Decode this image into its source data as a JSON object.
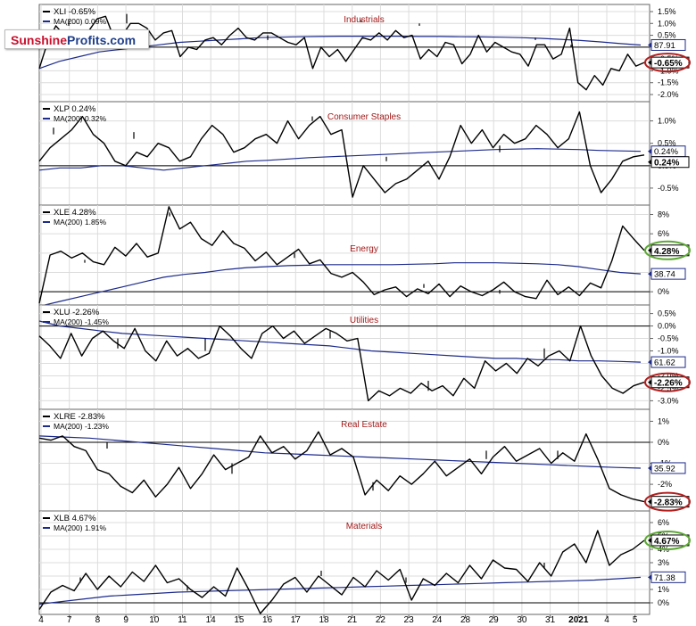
{
  "logo": {
    "part1": "Sunshine",
    "part2": "Profits",
    "part3": ".com"
  },
  "chart_data": {
    "type": "line",
    "x_labels": [
      "4",
      "7",
      "8",
      "9",
      "10",
      "11",
      "14",
      "15",
      "16",
      "17",
      "18",
      "21",
      "22",
      "23",
      "24",
      "28",
      "29",
      "30",
      "31",
      "2021",
      "4",
      "5"
    ],
    "colors": {
      "price": "#000000",
      "ma": "#1c2a8a",
      "grid": "#dcdcdc",
      "sector_title": "#a31919",
      "ellipse_red": "#b21e1e",
      "ellipse_green": "#5aa832"
    },
    "panels": [
      {
        "legend": "XLI -0.65%",
        "ma_legend": "MA(200) 0.09%",
        "sector": "Industrials",
        "yticks": [
          "1.5%",
          "1.0%",
          "0.5%",
          "0.0%",
          "-0.5%",
          "-1.0%",
          "-1.5%",
          "-2.0%"
        ],
        "ylim": [
          -2.15,
          1.65
        ],
        "ma_value": "87.91",
        "current_value": "-0.65%",
        "current": -0.65,
        "ellipse": "red",
        "price": [
          -0.9,
          0.2,
          0.9,
          0.5,
          0.6,
          0.0,
          0.7,
          1.2,
          1.3,
          0.4,
          0.5,
          1.0,
          1.0,
          0.8,
          0.3,
          0.6,
          0.7,
          -0.4,
          0.0,
          -0.1,
          0.3,
          0.4,
          0.1,
          0.5,
          0.8,
          0.4,
          0.3,
          0.6,
          0.6,
          0.4,
          0.2,
          0.1,
          0.4,
          -0.9,
          0.0,
          -0.4,
          -0.1,
          -0.6,
          -0.1,
          0.4,
          0.3,
          0.6,
          0.3,
          0.7,
          0.4,
          0.5,
          -0.5,
          -0.1,
          -0.4,
          0.2,
          0.1,
          -0.7,
          -0.3,
          0.5,
          -0.2,
          0.2,
          0.0,
          -0.2,
          -0.3,
          -0.8,
          0.1,
          0.1,
          -0.5,
          -0.3,
          0.8,
          -1.5,
          -1.8,
          -1.2,
          -1.6,
          -0.9,
          -1.0,
          -0.3,
          -0.8,
          -0.65
        ],
        "ma": [
          -0.9,
          -0.6,
          -0.4,
          -0.2,
          -0.1,
          0.0,
          0.1,
          0.2,
          0.25,
          0.3,
          0.35,
          0.4,
          0.42,
          0.44,
          0.45,
          0.46,
          0.46,
          0.46,
          0.46,
          0.45,
          0.45,
          0.44,
          0.43,
          0.42,
          0.4,
          0.37,
          0.33,
          0.28,
          0.22,
          0.15,
          0.09
        ]
      },
      {
        "legend": "XLP 0.24%",
        "ma_legend": "MA(200) 0.32%",
        "sector": "Consumer Staples",
        "yticks": [
          "1.0%",
          "0.5%",
          "0.0%",
          "-0.5%"
        ],
        "ylim": [
          -0.8,
          1.35
        ],
        "ma_value": "0.24%",
        "current_value": "0.24%",
        "current": 0.24,
        "ellipse": "none",
        "price": [
          0.1,
          0.4,
          0.6,
          0.8,
          1.1,
          0.7,
          0.5,
          0.1,
          0.0,
          0.3,
          0.2,
          0.5,
          0.4,
          0.1,
          0.2,
          0.6,
          0.9,
          0.7,
          0.3,
          0.4,
          0.6,
          0.7,
          0.5,
          1.0,
          0.6,
          0.9,
          1.1,
          0.7,
          0.8,
          -0.7,
          0.0,
          -0.3,
          -0.6,
          -0.4,
          -0.3,
          -0.1,
          0.1,
          -0.3,
          0.2,
          0.9,
          0.5,
          0.8,
          0.4,
          0.7,
          0.5,
          0.6,
          0.9,
          0.7,
          0.4,
          0.6,
          1.2,
          0.0,
          -0.6,
          -0.3,
          0.1,
          0.2,
          0.24
        ],
        "ma": [
          -0.1,
          -0.05,
          -0.05,
          0.0,
          0.0,
          -0.05,
          -0.1,
          -0.05,
          0.0,
          0.05,
          0.1,
          0.12,
          0.15,
          0.18,
          0.2,
          0.22,
          0.24,
          0.26,
          0.28,
          0.3,
          0.32,
          0.34,
          0.36,
          0.37,
          0.38,
          0.37,
          0.36,
          0.34,
          0.33,
          0.32
        ]
      },
      {
        "legend": "XLE 4.28%",
        "ma_legend": "MA(200) 1.85%",
        "sector": "Energy",
        "yticks": [
          "8%",
          "6%",
          "4%",
          "2%",
          "0%"
        ],
        "ylim": [
          -1.0,
          8.6
        ],
        "ma_value": "38.74",
        "current_value": "4.28%",
        "current": 4.28,
        "ellipse": "green",
        "price": [
          -1.2,
          3.8,
          4.2,
          3.5,
          4.0,
          3.1,
          2.8,
          4.6,
          3.7,
          5.0,
          3.6,
          4.0,
          8.8,
          6.5,
          7.2,
          5.5,
          4.8,
          6.3,
          5.0,
          4.5,
          3.2,
          4.1,
          2.8,
          3.6,
          4.4,
          2.9,
          3.3,
          1.9,
          1.5,
          2.0,
          1.0,
          -0.3,
          0.2,
          0.5,
          -0.5,
          0.3,
          -0.2,
          0.8,
          -0.5,
          0.6,
          0.0,
          -0.4,
          0.2,
          1.0,
          0.0,
          -0.5,
          -0.7,
          1.2,
          -0.3,
          0.5,
          -0.4,
          0.9,
          0.4,
          3.2,
          6.8,
          5.5,
          4.28
        ],
        "ma": [
          -1.5,
          -1.0,
          -0.5,
          0.0,
          0.5,
          1.0,
          1.5,
          1.8,
          2.0,
          2.3,
          2.5,
          2.6,
          2.7,
          2.75,
          2.8,
          2.8,
          2.8,
          2.8,
          2.85,
          2.9,
          3.0,
          3.0,
          3.0,
          2.95,
          2.9,
          2.8,
          2.6,
          2.3,
          2.0,
          1.85
        ]
      },
      {
        "legend": "XLU -2.26%",
        "ma_legend": "MA(200) -1.45%",
        "sector": "Utilities",
        "yticks": [
          "0.5%",
          "0.0%",
          "-0.5%",
          "-1.0%",
          "-1.5%",
          "-2.0%",
          "-2.5%",
          "-3.0%"
        ],
        "ylim": [
          -3.2,
          0.7
        ],
        "ma_value": "61.62",
        "current_value": "-2.26%",
        "current": -2.26,
        "ellipse": "red",
        "price": [
          -0.4,
          -0.8,
          -1.3,
          -0.3,
          -1.2,
          -0.5,
          -0.2,
          -0.6,
          -0.9,
          -0.1,
          -1.0,
          -1.4,
          -0.6,
          -1.2,
          -0.9,
          -1.3,
          -1.1,
          0.0,
          -0.4,
          -0.9,
          -1.3,
          -0.3,
          0.0,
          -0.5,
          -0.2,
          -0.7,
          -0.4,
          -0.1,
          -0.3,
          -0.6,
          -0.5,
          -3.0,
          -2.6,
          -2.8,
          -2.5,
          -2.7,
          -2.3,
          -2.6,
          -2.4,
          -2.8,
          -2.1,
          -2.5,
          -1.4,
          -1.8,
          -1.5,
          -1.9,
          -1.3,
          -1.6,
          -1.2,
          -1.0,
          -1.4,
          0.0,
          -1.2,
          -2.0,
          -2.5,
          -2.7,
          -2.4,
          -2.26
        ],
        "ma": [
          0.2,
          0.0,
          -0.1,
          -0.2,
          -0.3,
          -0.35,
          -0.4,
          -0.45,
          -0.5,
          -0.55,
          -0.6,
          -0.65,
          -0.7,
          -0.75,
          -0.8,
          -0.9,
          -1.0,
          -1.05,
          -1.1,
          -1.15,
          -1.2,
          -1.25,
          -1.3,
          -1.3,
          -1.35,
          -1.35,
          -1.4,
          -1.4,
          -1.42,
          -1.45
        ]
      },
      {
        "legend": "XLRE -2.83%",
        "ma_legend": "MA(200) -1.23%",
        "sector": "Real Estate",
        "yticks": [
          "1%",
          "0%",
          "-1%",
          "-2%"
        ],
        "ylim": [
          -3.1,
          1.4
        ],
        "ma_value": "35.92",
        "current_value": "-2.83%",
        "current": -2.83,
        "ellipse": "red",
        "price": [
          0.2,
          0.1,
          0.3,
          -0.2,
          -0.4,
          -1.3,
          -1.5,
          -2.1,
          -2.4,
          -1.8,
          -2.6,
          -2.0,
          -1.2,
          -2.2,
          -1.5,
          -0.6,
          -1.3,
          -1.0,
          -0.7,
          0.3,
          -0.5,
          -0.2,
          -0.8,
          -0.4,
          0.5,
          -0.6,
          -0.3,
          -0.7,
          -2.5,
          -1.8,
          -2.3,
          -1.6,
          -2.0,
          -1.5,
          -0.9,
          -1.6,
          -1.2,
          -0.8,
          -1.5,
          -0.7,
          -0.2,
          -0.9,
          -0.6,
          -0.3,
          -1.0,
          -0.5,
          -0.9,
          0.4,
          -0.8,
          -2.2,
          -2.5,
          -2.7,
          -2.83
        ],
        "ma": [
          0.3,
          0.25,
          0.2,
          0.1,
          0.0,
          -0.1,
          -0.2,
          -0.3,
          -0.4,
          -0.5,
          -0.55,
          -0.6,
          -0.65,
          -0.7,
          -0.75,
          -0.8,
          -0.85,
          -0.9,
          -0.95,
          -1.0,
          -1.05,
          -1.1,
          -1.15,
          -1.2,
          -1.23
        ]
      },
      {
        "legend": "XLB 4.67%",
        "ma_legend": "MA(200) 1.91%",
        "sector": "Materials",
        "yticks": [
          "6%",
          "5%",
          "4%",
          "3%",
          "2%",
          "1%",
          "0%"
        ],
        "ylim": [
          -0.6,
          6.6
        ],
        "ma_value": "71.38",
        "current_value": "4.67%",
        "current": 4.67,
        "ellipse": "green",
        "price": [
          -0.5,
          0.8,
          1.3,
          0.9,
          2.2,
          1.0,
          2.0,
          1.2,
          2.3,
          1.6,
          2.8,
          1.5,
          1.8,
          1.0,
          0.4,
          1.2,
          0.5,
          2.6,
          1.0,
          -0.8,
          0.2,
          1.4,
          1.9,
          0.8,
          2.0,
          1.3,
          0.6,
          1.9,
          1.2,
          2.4,
          1.7,
          2.5,
          0.2,
          1.8,
          1.3,
          2.2,
          1.5,
          2.8,
          1.8,
          3.2,
          2.6,
          2.5,
          1.6,
          3.0,
          2.0,
          3.8,
          4.4,
          3.0,
          5.4,
          2.8,
          3.6,
          4.0,
          4.67
        ],
        "ma": [
          -0.1,
          0.1,
          0.3,
          0.5,
          0.6,
          0.7,
          0.8,
          0.85,
          0.9,
          0.95,
          1.0,
          1.05,
          1.1,
          1.15,
          1.2,
          1.25,
          1.3,
          1.35,
          1.4,
          1.45,
          1.5,
          1.55,
          1.6,
          1.65,
          1.7,
          1.8,
          1.91
        ]
      }
    ]
  }
}
